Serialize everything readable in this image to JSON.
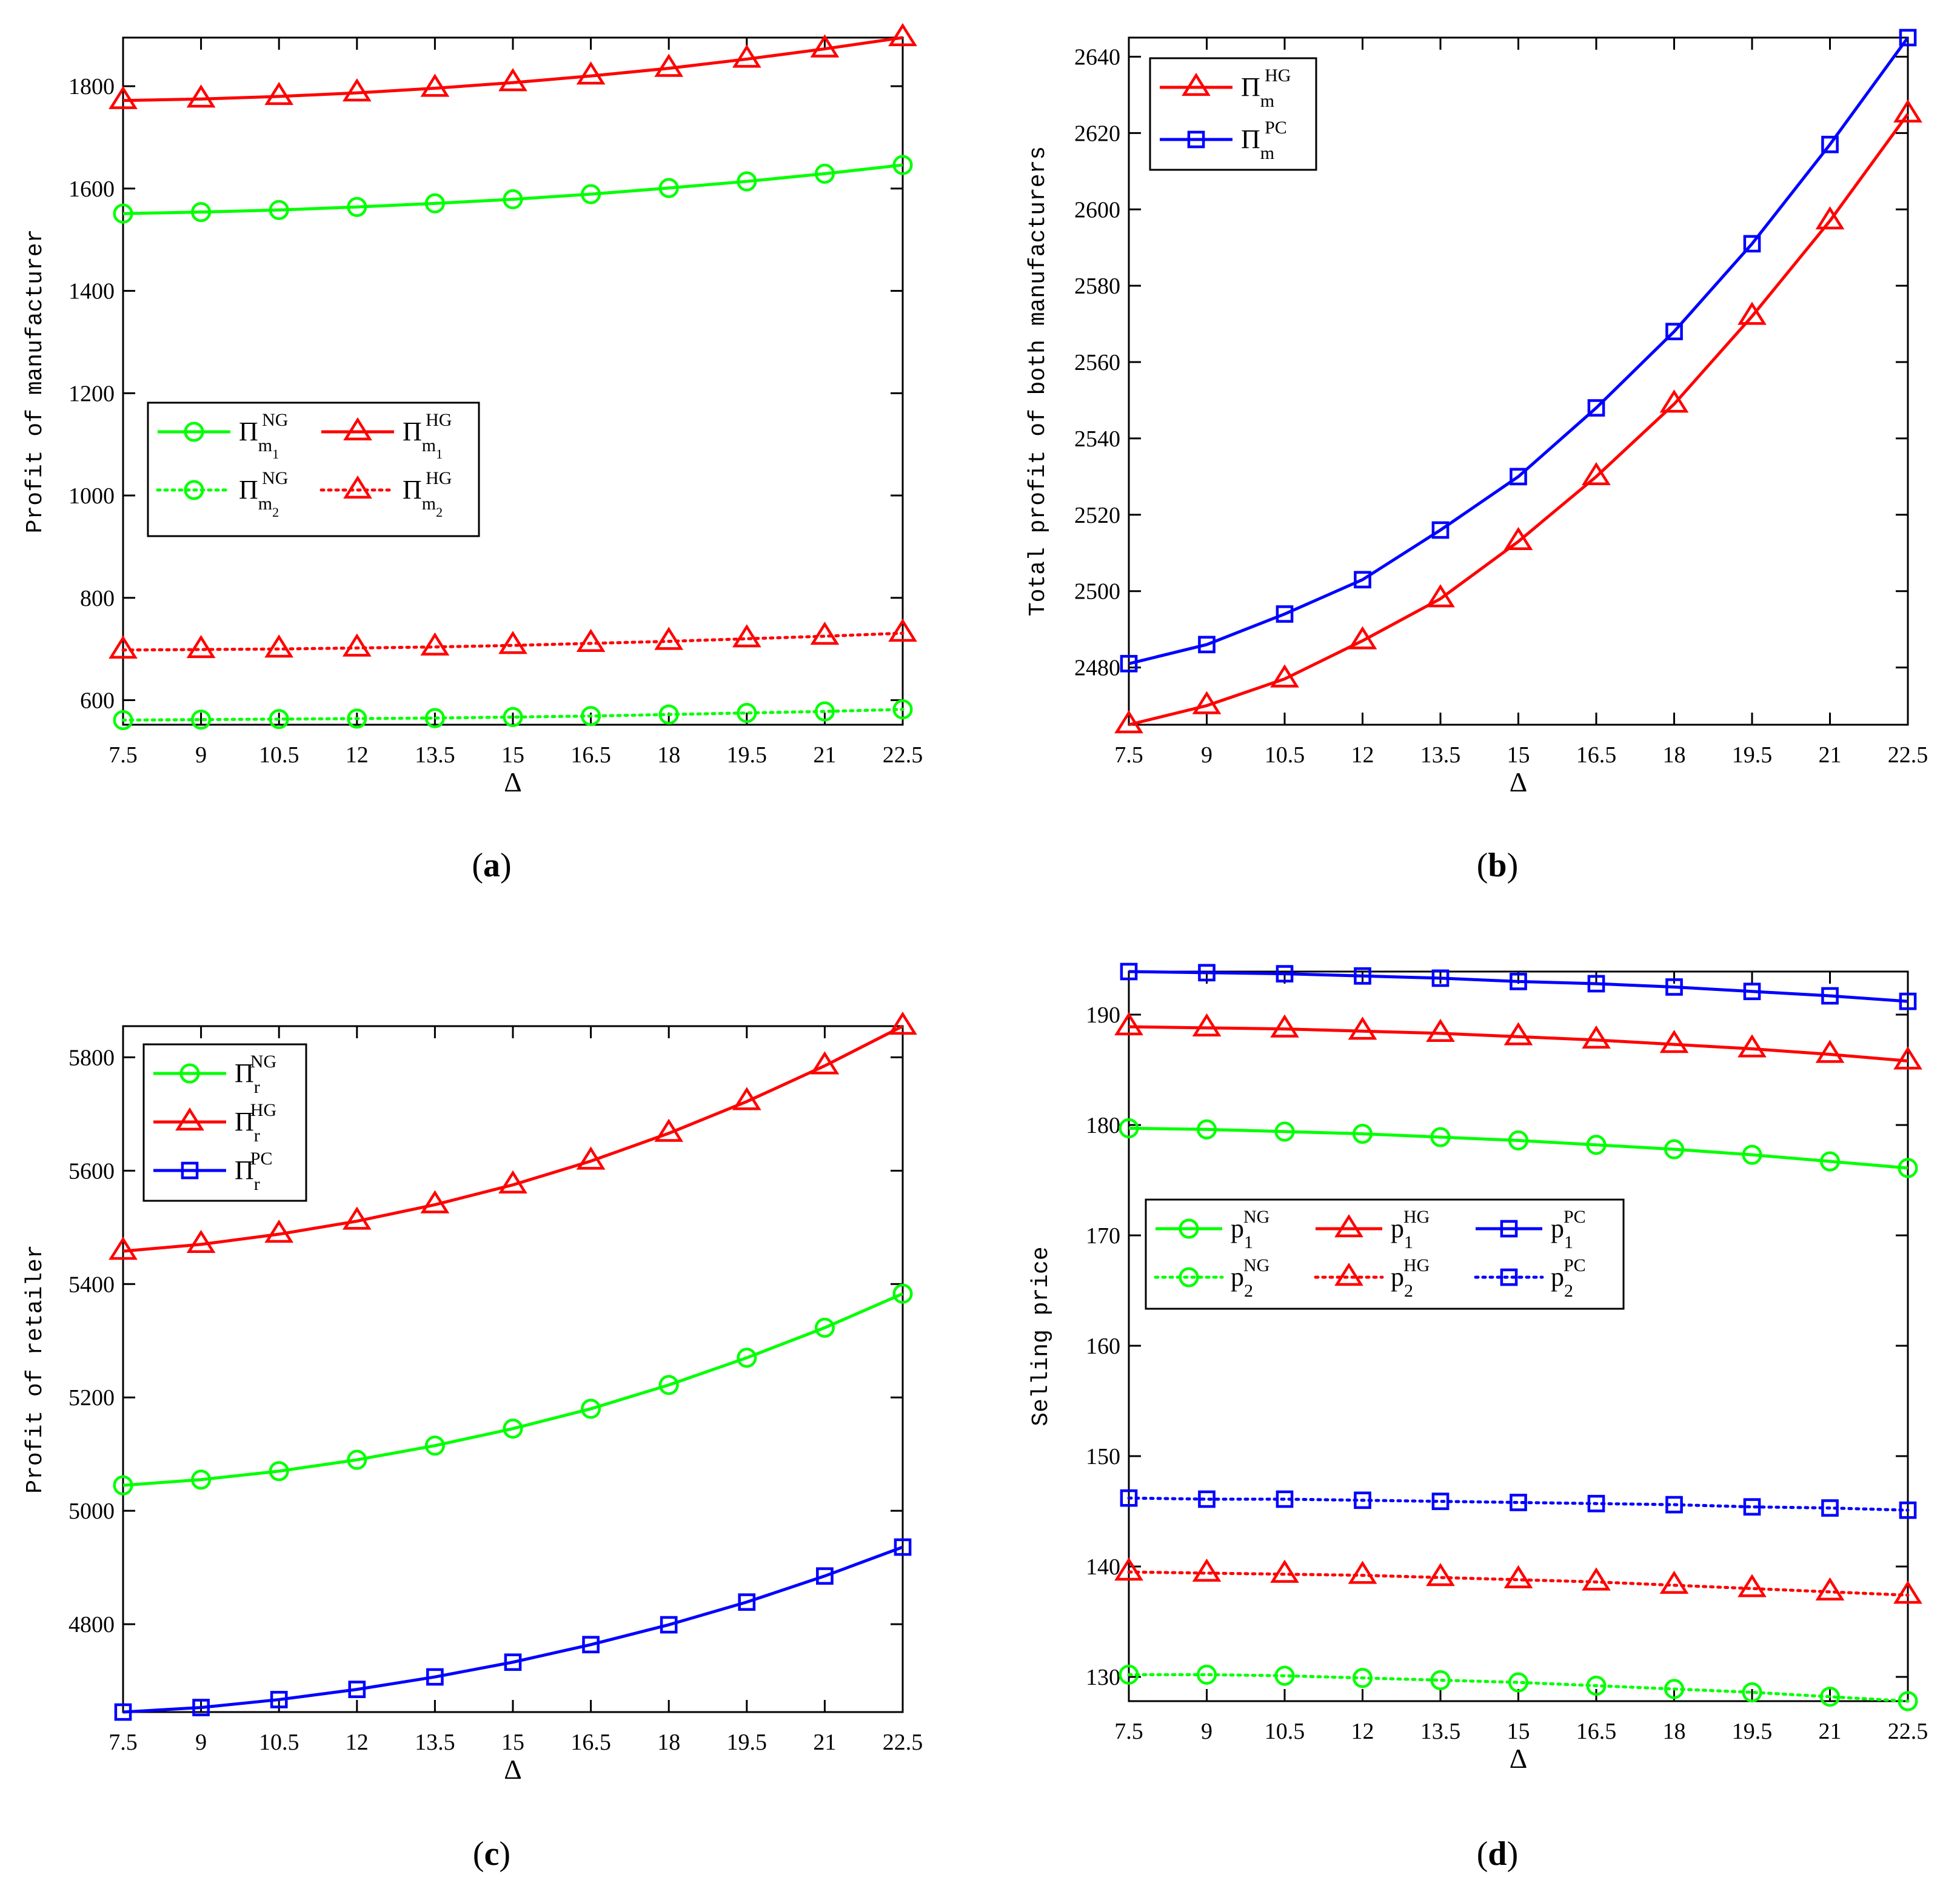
{
  "chart_data": [
    {
      "id": "a",
      "type": "line",
      "caption": "(a)",
      "xlabel": "Δ",
      "ylabel": "Profit of manufacturer",
      "x": [
        7.5,
        9,
        10.5,
        12,
        13.5,
        15,
        16.5,
        18,
        19.5,
        21,
        22.5
      ],
      "xticks": [
        "7.5",
        "9",
        "10.5",
        "12",
        "13.5",
        "15",
        "16.5",
        "18",
        "19.5",
        "21",
        "22.5"
      ],
      "xlim": [
        7.5,
        22.5
      ],
      "ylim": [
        552,
        1895
      ],
      "yticks": [
        600,
        800,
        1000,
        1200,
        1400,
        1600,
        1800
      ],
      "legend_position": "center-left",
      "legend_columns": 2,
      "series": [
        {
          "name": "Π_m1^NG",
          "base": "Π",
          "sub": "m",
          "subsub": "1",
          "sup": "NG",
          "color": "#00ff00",
          "marker": "circle",
          "dash": "solid",
          "values": [
            1551,
            1554,
            1558,
            1564,
            1571,
            1579,
            1589,
            1601,
            1614,
            1629,
            1646
          ]
        },
        {
          "name": "Π_m1^HG",
          "base": "Π",
          "sub": "m",
          "subsub": "1",
          "sup": "HG",
          "color": "#ff0000",
          "marker": "triangle",
          "dash": "solid",
          "values": [
            1772,
            1775,
            1780,
            1787,
            1796,
            1807,
            1820,
            1835,
            1853,
            1873,
            1895
          ]
        },
        {
          "name": "Π_m2^NG",
          "base": "Π",
          "sub": "m",
          "subsub": "2",
          "sup": "NG",
          "color": "#00ff00",
          "marker": "circle",
          "dash": "dotted",
          "values": [
            561,
            562,
            563,
            564,
            565,
            567,
            569,
            572,
            575,
            578,
            582
          ]
        },
        {
          "name": "Π_m2^HG",
          "base": "Π",
          "sub": "m",
          "subsub": "2",
          "sup": "HG",
          "color": "#ff0000",
          "marker": "triangle",
          "dash": "dotted",
          "values": [
            698,
            699,
            700,
            702,
            704,
            707,
            711,
            715,
            720,
            725,
            731
          ]
        }
      ]
    },
    {
      "id": "b",
      "type": "line",
      "caption": "(b)",
      "xlabel": "Δ",
      "ylabel": "Total profit of both manufacturers",
      "x": [
        7.5,
        9,
        10.5,
        12,
        13.5,
        15,
        16.5,
        18,
        19.5,
        21,
        22.5
      ],
      "xticks": [
        "7.5",
        "9",
        "10.5",
        "12",
        "13.5",
        "15",
        "16.5",
        "18",
        "19.5",
        "21",
        "22.5"
      ],
      "xlim": [
        7.5,
        22.5
      ],
      "ylim": [
        2465,
        2645
      ],
      "yticks": [
        2480,
        2500,
        2520,
        2540,
        2560,
        2580,
        2600,
        2620,
        2640
      ],
      "legend_position": "top-left",
      "legend_columns": 1,
      "series": [
        {
          "name": "Π_m^HG",
          "base": "Π",
          "sub": "m",
          "subsub": "",
          "sup": "HG",
          "color": "#ff0000",
          "marker": "triangle",
          "dash": "solid",
          "values": [
            2465,
            2470,
            2477,
            2487,
            2498,
            2513,
            2530,
            2549,
            2572,
            2597,
            2625
          ]
        },
        {
          "name": "Π_m^PC",
          "base": "Π",
          "sub": "m",
          "subsub": "",
          "sup": "PC",
          "color": "#0000ff",
          "marker": "square",
          "dash": "solid",
          "values": [
            2481,
            2486,
            2494,
            2503,
            2516,
            2530,
            2548,
            2568,
            2591,
            2617,
            2645
          ]
        }
      ]
    },
    {
      "id": "c",
      "type": "line",
      "caption": "(c)",
      "xlabel": "Δ",
      "ylabel": "Profit of retailer",
      "x": [
        7.5,
        9,
        10.5,
        12,
        13.5,
        15,
        16.5,
        18,
        19.5,
        21,
        22.5
      ],
      "xticks": [
        "7.5",
        "9",
        "10.5",
        "12",
        "13.5",
        "15",
        "16.5",
        "18",
        "19.5",
        "21",
        "22.5"
      ],
      "xlim": [
        7.5,
        22.5
      ],
      "ylim": [
        4645,
        5855
      ],
      "yticks": [
        4800,
        5000,
        5200,
        5400,
        5600,
        5800
      ],
      "legend_position": "top-left",
      "legend_columns": 1,
      "series": [
        {
          "name": "Π_r^NG",
          "base": "Π",
          "sub": "r",
          "subsub": "",
          "sup": "NG",
          "color": "#00ff00",
          "marker": "circle",
          "dash": "solid",
          "values": [
            5045,
            5055,
            5070,
            5090,
            5115,
            5145,
            5180,
            5222,
            5270,
            5323,
            5383
          ]
        },
        {
          "name": "Π_r^HG",
          "base": "Π",
          "sub": "r",
          "subsub": "",
          "sup": "HG",
          "color": "#ff0000",
          "marker": "triangle",
          "dash": "solid",
          "values": [
            5458,
            5470,
            5488,
            5511,
            5540,
            5575,
            5617,
            5666,
            5722,
            5785,
            5855
          ]
        },
        {
          "name": "Π_r^PC",
          "base": "Π",
          "sub": "r",
          "subsub": "",
          "sup": "PC",
          "color": "#0000ff",
          "marker": "square",
          "dash": "solid",
          "values": [
            4645,
            4653,
            4667,
            4685,
            4707,
            4733,
            4764,
            4799,
            4839,
            4885,
            4936
          ]
        }
      ]
    },
    {
      "id": "d",
      "type": "line",
      "caption": "(d)",
      "xlabel": "Δ",
      "ylabel": "Selling price",
      "x": [
        7.5,
        9,
        10.5,
        12,
        13.5,
        15,
        16.5,
        18,
        19.5,
        21,
        22.5
      ],
      "xticks": [
        "7.5",
        "9",
        "10.5",
        "12",
        "13.5",
        "15",
        "16.5",
        "18",
        "19.5",
        "21",
        "22.5"
      ],
      "xlim": [
        7.5,
        22.5
      ],
      "ylim": [
        127.8,
        193.9
      ],
      "yticks": [
        130,
        140,
        150,
        160,
        170,
        180,
        190
      ],
      "legend_position": "center-left",
      "legend_columns": 3,
      "series": [
        {
          "name": "p_1^NG",
          "base": "p",
          "sub": "1",
          "subsub": "",
          "sup": "NG",
          "color": "#00ff00",
          "marker": "circle",
          "dash": "solid",
          "values": [
            179.7,
            179.6,
            179.4,
            179.2,
            178.9,
            178.6,
            178.2,
            177.8,
            177.3,
            176.7,
            176.1
          ]
        },
        {
          "name": "p_1^HG",
          "base": "p",
          "sub": "1",
          "subsub": "",
          "sup": "HG",
          "color": "#ff0000",
          "marker": "triangle",
          "dash": "solid",
          "values": [
            188.9,
            188.8,
            188.7,
            188.5,
            188.3,
            188.0,
            187.7,
            187.3,
            186.9,
            186.4,
            185.8
          ]
        },
        {
          "name": "p_1^PC",
          "base": "p",
          "sub": "1",
          "subsub": "",
          "sup": "PC",
          "color": "#0000ff",
          "marker": "square",
          "dash": "solid",
          "values": [
            193.9,
            193.8,
            193.7,
            193.5,
            193.3,
            193.0,
            192.8,
            192.5,
            192.1,
            191.7,
            191.2
          ]
        },
        {
          "name": "p_2^NG",
          "base": "p",
          "sub": "2",
          "subsub": "",
          "sup": "NG",
          "color": "#00ff00",
          "marker": "circle",
          "dash": "dotted",
          "values": [
            130.2,
            130.2,
            130.1,
            129.9,
            129.7,
            129.5,
            129.2,
            128.9,
            128.6,
            128.2,
            127.8
          ]
        },
        {
          "name": "p_2^HG",
          "base": "p",
          "sub": "2",
          "subsub": "",
          "sup": "HG",
          "color": "#ff0000",
          "marker": "triangle",
          "dash": "dotted",
          "values": [
            139.5,
            139.4,
            139.3,
            139.2,
            139.0,
            138.8,
            138.6,
            138.3,
            138.0,
            137.7,
            137.4
          ]
        },
        {
          "name": "p_2^PC",
          "base": "p",
          "sub": "2",
          "subsub": "",
          "sup": "PC",
          "color": "#0000ff",
          "marker": "square",
          "dash": "dotted",
          "values": [
            146.2,
            146.1,
            146.1,
            146.0,
            145.9,
            145.8,
            145.7,
            145.6,
            145.4,
            145.3,
            145.1
          ]
        }
      ]
    }
  ]
}
